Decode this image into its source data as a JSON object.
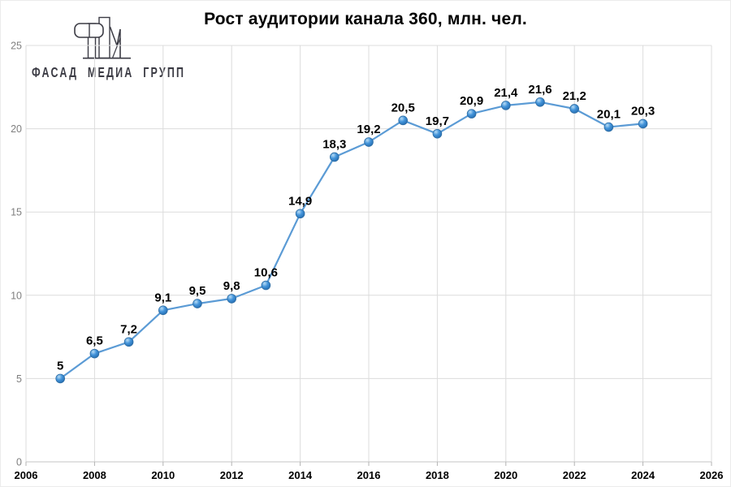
{
  "logo": {
    "text": "ФАСАД МЕДИА ГРУПП",
    "colors": {
      "red": "#e84a5c",
      "gray": "#b5b5bc",
      "dark": "#3b3b44"
    }
  },
  "chart_data": {
    "type": "line",
    "title": "Рост аудитории канала 360, млн. чел.",
    "x": [
      2007,
      2008,
      2009,
      2010,
      2011,
      2012,
      2013,
      2014,
      2015,
      2016,
      2017,
      2018,
      2019,
      2020,
      2021,
      2022,
      2023,
      2024
    ],
    "values": [
      5,
      6.5,
      7.2,
      9.1,
      9.5,
      9.8,
      10.6,
      14.9,
      18.3,
      19.2,
      20.5,
      19.7,
      20.9,
      21.4,
      21.6,
      21.2,
      20.1,
      20.3
    ],
    "point_labels": [
      "5",
      "6,5",
      "7,2",
      "9,1",
      "9,5",
      "9,8",
      "10,6",
      "14,9",
      "18,3",
      "19,2",
      "20,5",
      "19,7",
      "20,9",
      "21,4",
      "21,6",
      "21,2",
      "20,1",
      "20,3"
    ],
    "xlabel": "",
    "ylabel": "",
    "xlim": [
      2006,
      2026
    ],
    "ylim": [
      0,
      25
    ],
    "x_ticks": [
      2006,
      2008,
      2010,
      2012,
      2014,
      2016,
      2018,
      2020,
      2022,
      2024,
      2026
    ],
    "y_ticks": [
      0,
      5,
      10,
      15,
      20,
      25
    ],
    "grid": true,
    "legend": "none",
    "colors": {
      "line": "#5b9bd5",
      "marker_highlight": "#b8dcf5",
      "marker_main": "#4394da",
      "marker_dark": "#2268ab",
      "marker_rim": "#2e6da4",
      "grid": "#dcdcdc",
      "axis_line": "#c6c6c6",
      "y_tick_text": "#7f7f7f",
      "x_tick_text": "#000000",
      "point_label_text": "#000000"
    }
  }
}
